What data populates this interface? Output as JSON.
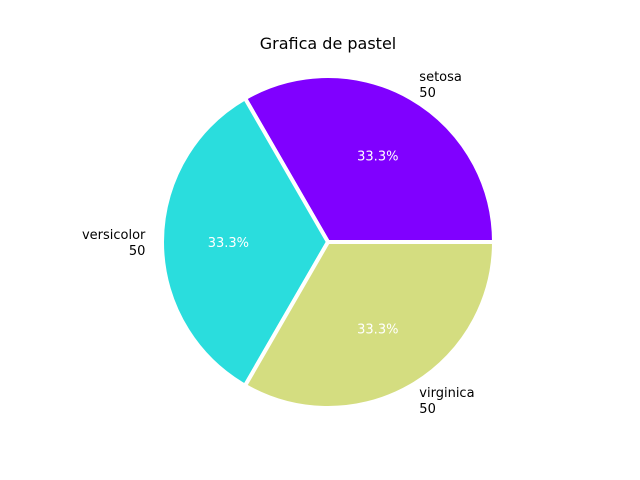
{
  "chart_data": {
    "type": "pie",
    "title": "Grafica de pastel",
    "slices": [
      {
        "label": "setosa",
        "value": 50,
        "value_text": "50",
        "percent_text": "33.3%",
        "color": "#8000ff"
      },
      {
        "label": "versicolor",
        "value": 50,
        "value_text": "50",
        "percent_text": "33.3%",
        "color": "#2adddd"
      },
      {
        "label": "virginica",
        "value": 50,
        "value_text": "50",
        "percent_text": "33.3%",
        "color": "#d4dd80"
      }
    ],
    "start_angle_deg": 0,
    "direction": "counterclockwise",
    "legend": "none"
  }
}
